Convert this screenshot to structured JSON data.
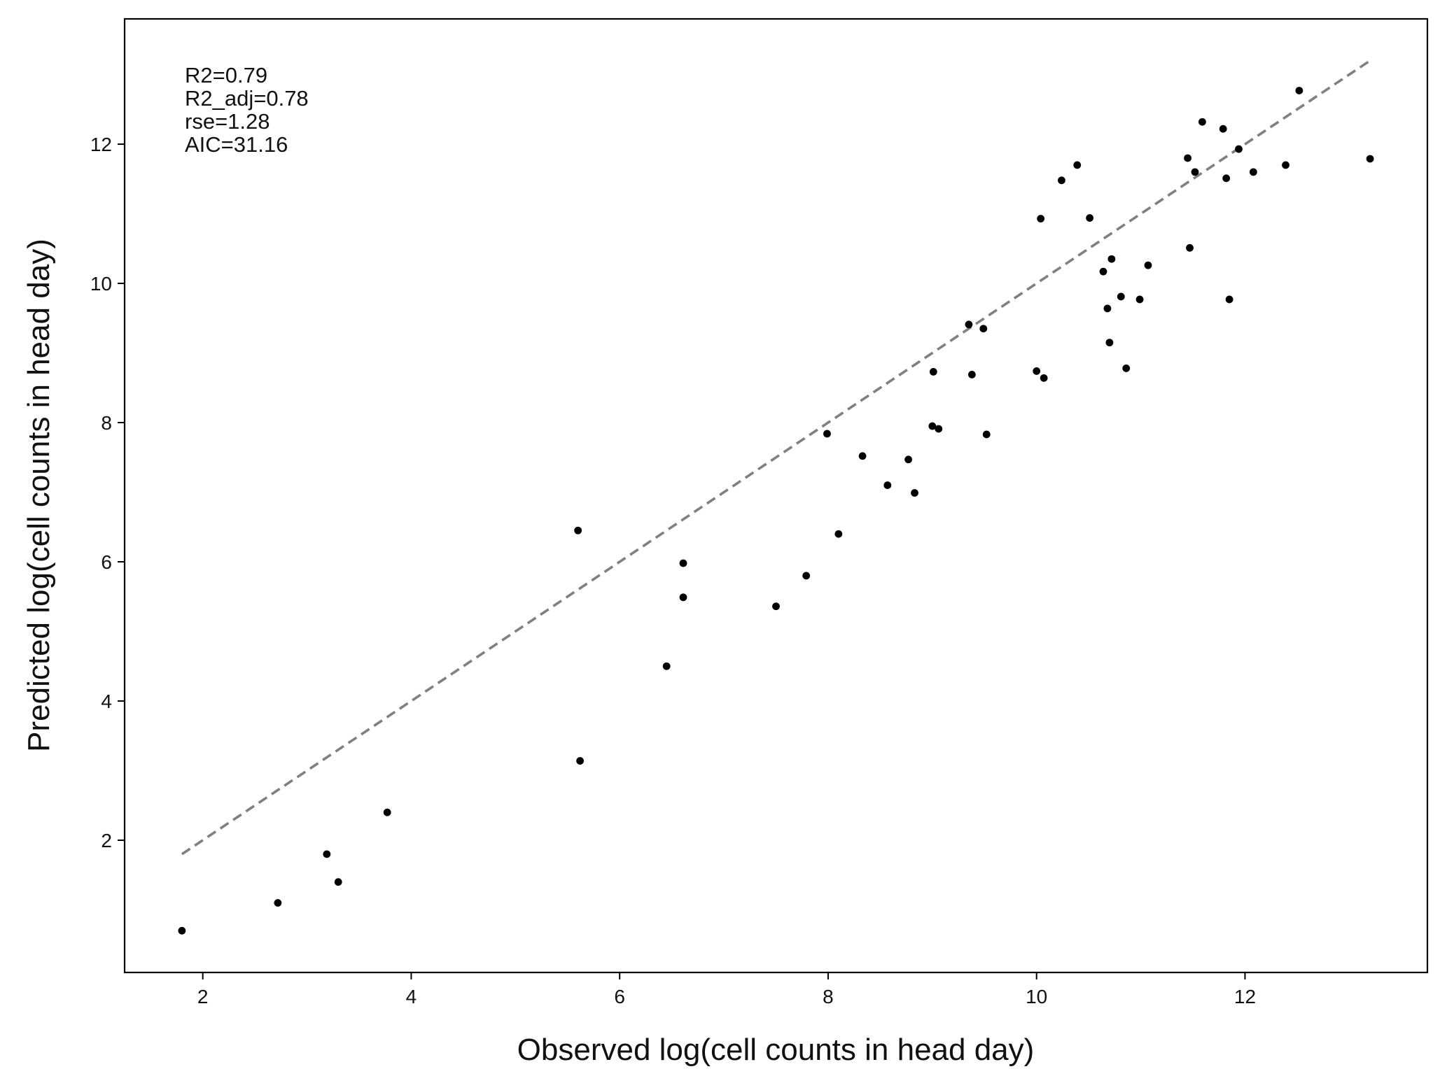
{
  "chart_data": {
    "type": "scatter",
    "xlabel": "Observed log(cell counts in head day)",
    "ylabel": "Predicted log(cell counts in head day)",
    "xlim": [
      1.25,
      13.75
    ],
    "ylim": [
      0.1,
      13.8
    ],
    "x_ticks": [
      2,
      4,
      6,
      8,
      10,
      12
    ],
    "y_ticks": [
      2,
      4,
      6,
      8,
      10,
      12
    ],
    "grid": false,
    "annotations": [
      "R2=0.79",
      "R2_adj=0.78",
      "rse=1.28",
      "AIC=31.16"
    ],
    "reference_line": {
      "style": "dashed",
      "color": "#808080",
      "x": [
        1.8,
        13.2
      ],
      "y": [
        1.8,
        13.2
      ]
    },
    "point_color": "#000000",
    "points": [
      {
        "x": 1.8,
        "y": 0.7
      },
      {
        "x": 2.72,
        "y": 1.1
      },
      {
        "x": 3.19,
        "y": 1.8
      },
      {
        "x": 3.3,
        "y": 1.4
      },
      {
        "x": 3.77,
        "y": 2.4
      },
      {
        "x": 5.6,
        "y": 6.45
      },
      {
        "x": 5.62,
        "y": 3.14
      },
      {
        "x": 6.45,
        "y": 4.5
      },
      {
        "x": 6.61,
        "y": 5.98
      },
      {
        "x": 6.61,
        "y": 5.49
      },
      {
        "x": 7.5,
        "y": 5.36
      },
      {
        "x": 7.79,
        "y": 5.8
      },
      {
        "x": 7.99,
        "y": 7.84
      },
      {
        "x": 8.1,
        "y": 6.4
      },
      {
        "x": 8.33,
        "y": 7.52
      },
      {
        "x": 8.57,
        "y": 7.1
      },
      {
        "x": 8.77,
        "y": 7.47
      },
      {
        "x": 8.83,
        "y": 6.99
      },
      {
        "x": 9.0,
        "y": 7.95
      },
      {
        "x": 9.06,
        "y": 7.91
      },
      {
        "x": 9.01,
        "y": 8.73
      },
      {
        "x": 9.35,
        "y": 9.41
      },
      {
        "x": 9.38,
        "y": 8.69
      },
      {
        "x": 9.49,
        "y": 9.35
      },
      {
        "x": 9.52,
        "y": 7.83
      },
      {
        "x": 10.0,
        "y": 8.74
      },
      {
        "x": 10.07,
        "y": 8.64
      },
      {
        "x": 10.04,
        "y": 10.93
      },
      {
        "x": 10.24,
        "y": 11.48
      },
      {
        "x": 10.39,
        "y": 11.7
      },
      {
        "x": 10.51,
        "y": 10.94
      },
      {
        "x": 10.64,
        "y": 10.17
      },
      {
        "x": 10.68,
        "y": 9.64
      },
      {
        "x": 10.7,
        "y": 9.15
      },
      {
        "x": 10.72,
        "y": 10.35
      },
      {
        "x": 10.81,
        "y": 9.81
      },
      {
        "x": 10.86,
        "y": 8.78
      },
      {
        "x": 10.99,
        "y": 9.77
      },
      {
        "x": 11.07,
        "y": 10.26
      },
      {
        "x": 11.45,
        "y": 11.8
      },
      {
        "x": 11.47,
        "y": 10.51
      },
      {
        "x": 11.52,
        "y": 11.6
      },
      {
        "x": 11.59,
        "y": 12.32
      },
      {
        "x": 11.79,
        "y": 12.22
      },
      {
        "x": 11.82,
        "y": 11.51
      },
      {
        "x": 11.85,
        "y": 9.77
      },
      {
        "x": 11.94,
        "y": 11.93
      },
      {
        "x": 12.08,
        "y": 11.6
      },
      {
        "x": 12.39,
        "y": 11.7
      },
      {
        "x": 12.52,
        "y": 12.77
      },
      {
        "x": 13.2,
        "y": 11.79
      }
    ]
  }
}
